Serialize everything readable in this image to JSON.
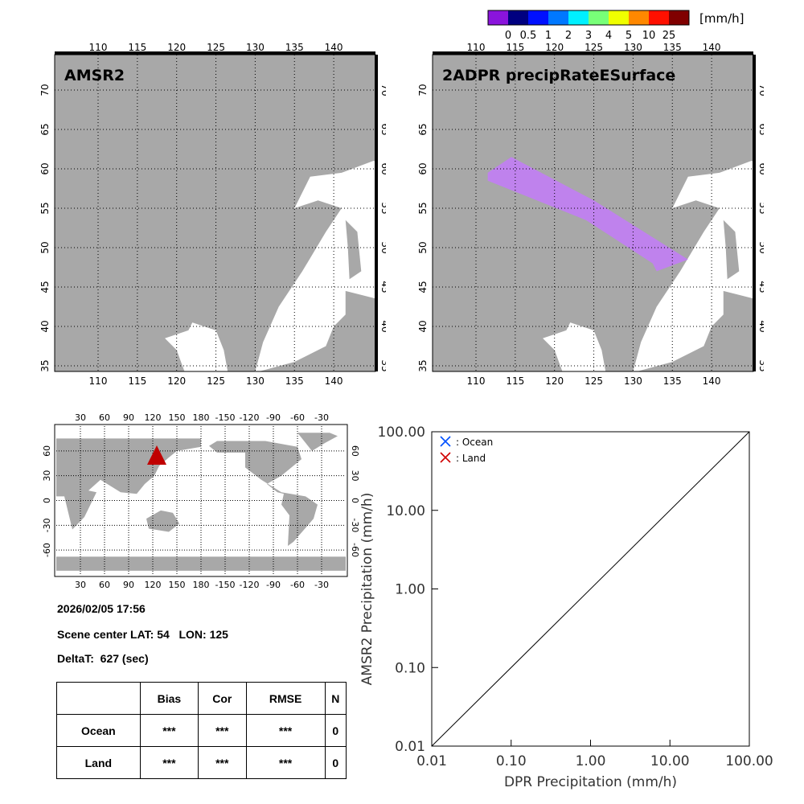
{
  "colorbar": {
    "unit": "[mm/h]",
    "colors": [
      "#8a14dc",
      "#000080",
      "#0010ff",
      "#0078ff",
      "#00f0ff",
      "#78ff78",
      "#f0ff00",
      "#ff8800",
      "#ff1000",
      "#800000"
    ],
    "labels": [
      "0",
      "0.5",
      "1",
      "2",
      "3",
      "4",
      "5",
      "10",
      "25"
    ]
  },
  "map_left": {
    "title": "AMSR2"
  },
  "map_right": {
    "title": "2ADPR precipRateESurface",
    "swath_color": "#c080f0"
  },
  "regional_axes": {
    "lon_ticks": [
      "110",
      "115",
      "120",
      "125",
      "130",
      "135",
      "140"
    ],
    "lat_ticks": [
      "35",
      "40",
      "45",
      "50",
      "55",
      "60",
      "65",
      "70"
    ]
  },
  "world_axes": {
    "lon_ticks": [
      "30",
      "60",
      "90",
      "120",
      "150",
      "180",
      "-150",
      "-120",
      "-90",
      "-60",
      "-30"
    ],
    "lat_ticks": [
      "-60",
      "-30",
      "0",
      "30",
      "60"
    ],
    "marker_color": "#c00000"
  },
  "info": {
    "datetime": "2026/02/05 17:56",
    "scene_center": "Scene center LAT: 54   LON: 125",
    "deltat": "DeltaT:  627 (sec)"
  },
  "stats_table": {
    "headers": [
      "",
      "Bias",
      "Cor",
      "RMSE",
      "N"
    ],
    "rows": [
      [
        "Ocean",
        "***",
        "***",
        "***",
        "0"
      ],
      [
        "Land",
        "***",
        "***",
        "***",
        "0"
      ]
    ]
  },
  "chart_data": {
    "type": "scatter",
    "title": "",
    "xlabel": "DPR Precipitation (mm/h)",
    "ylabel": "AMSR2 Precipitation (mm/h)",
    "xscale": "log",
    "yscale": "log",
    "xlim": [
      0.01,
      100
    ],
    "ylim": [
      0.01,
      100
    ],
    "xtick_labels": [
      "0.01",
      "0.10",
      "1.00",
      "10.00",
      "100.00"
    ],
    "ytick_labels": [
      "0.01",
      "0.10",
      "1.00",
      "10.00",
      "100.00"
    ],
    "legend": [
      {
        "label": ": Ocean",
        "color": "#0050ff",
        "marker": "x"
      },
      {
        "label": ": Land",
        "color": "#d00000",
        "marker": "x"
      }
    ],
    "legend_position": "top-left",
    "series": [
      {
        "name": "Ocean",
        "x": [],
        "y": []
      },
      {
        "name": "Land",
        "x": [],
        "y": []
      }
    ],
    "reference_line": "1:1"
  }
}
